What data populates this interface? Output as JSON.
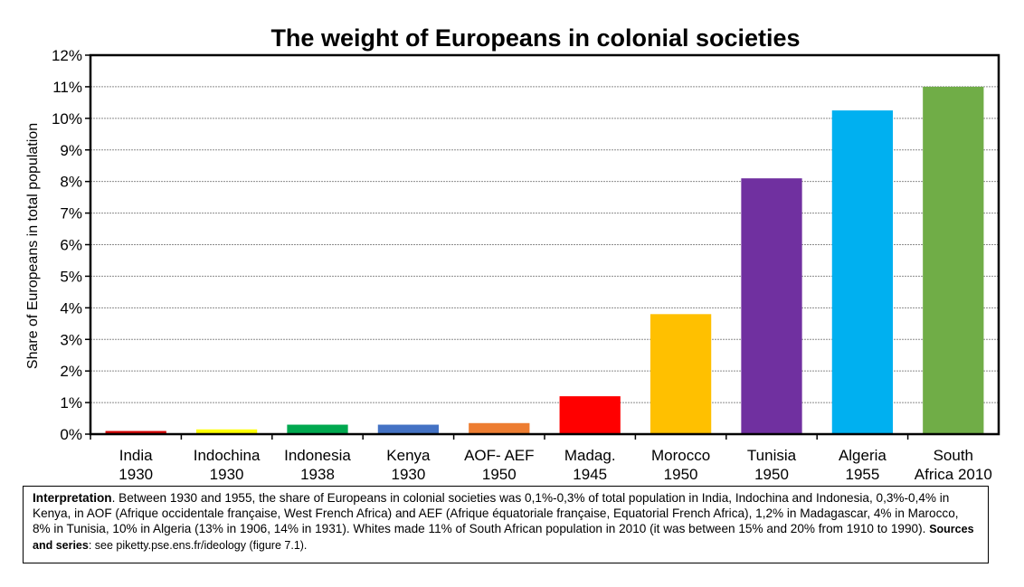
{
  "chart_data": {
    "type": "bar",
    "title": "The weight of Europeans in colonial societies",
    "ylabel": "Share of Europeans in total population",
    "xlabel": "",
    "ylim": [
      0,
      12
    ],
    "y_ticks": [
      "0%",
      "1%",
      "2%",
      "3%",
      "4%",
      "5%",
      "6%",
      "7%",
      "8%",
      "9%",
      "10%",
      "11%",
      "12%"
    ],
    "grid": true,
    "categories": [
      [
        "India",
        "1930"
      ],
      [
        "Indochina",
        "1930"
      ],
      [
        "Indonesia",
        "1938"
      ],
      [
        "Kenya",
        "1930"
      ],
      [
        "AOF- AEF",
        "1950"
      ],
      [
        "Madag.",
        "1945"
      ],
      [
        "Morocco",
        "1950"
      ],
      [
        "Tunisia",
        "1950"
      ],
      [
        "Algeria",
        "1955"
      ],
      [
        "South",
        "Africa 2010"
      ]
    ],
    "values": [
      0.1,
      0.15,
      0.3,
      0.3,
      0.35,
      1.2,
      3.8,
      8.1,
      10.25,
      11.0
    ],
    "colors": [
      "#d40000",
      "#ffff00",
      "#00a84f",
      "#4472c4",
      "#ed7d31",
      "#ff0000",
      "#ffc000",
      "#7030a0",
      "#00b0f0",
      "#70ad47"
    ]
  },
  "interpretation": {
    "lead": "Interpretation",
    "body": ". Between 1930 and 1955, the share of Europeans in colonial societies was 0,1%-0,3% of total population in India, Indochina and Indonesia, 0,3%-0,4% in Kenya, in AOF (Afrique occidentale française, West French Africa) and AEF (Afrique équatoriale française, Equatorial French Africa), 1,2% in Madagascar, 4% in Marocco, 8% in Tunisia, 10% in Algeria (13% in 1906, 14% in 1931). Whites made 11% of South African population in 2010 (it was between 15% and 20% from 1910 to 1990). ",
    "sources_label": "Sources and series",
    "sources_text": ": see piketty.pse.ens.fr/ideology (figure 7.1)."
  }
}
